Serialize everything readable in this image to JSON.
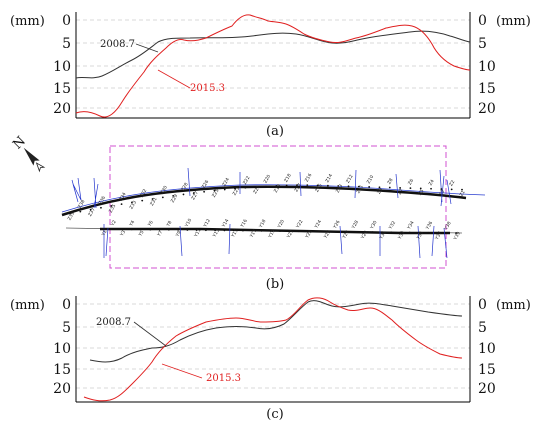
{
  "panels": [
    {
      "caption": "(a)",
      "unit_left": "(mm)",
      "unit_right": "(mm)",
      "ticks": [
        "0",
        "5",
        "10",
        "15",
        "20"
      ],
      "label_black": "2008.7",
      "label_red": "2015.3"
    },
    {
      "caption": "(c)",
      "unit_left": "(mm)",
      "unit_right": "(mm)",
      "ticks": [
        "0",
        "5",
        "10",
        "15",
        "20"
      ],
      "label_black": "2008.7",
      "label_red": "2015.3"
    }
  ],
  "map": {
    "caption": "(b)",
    "north_label": "N",
    "upper_points": [
      "Z39",
      "Z38",
      "Z37",
      "Z36",
      "Z35",
      "Z34",
      "Z33",
      "Z32",
      "Z31",
      "Z30",
      "Z29",
      "Z28",
      "Z27",
      "Z26",
      "Z25",
      "Z24",
      "Z23",
      "Z22",
      "Z21",
      "Z20",
      "Z19",
      "Z18",
      "Z17",
      "Z16",
      "Z15",
      "Z14",
      "Z13",
      "Z12",
      "Z11",
      "Z10",
      "Z9",
      "Z8",
      "Z7",
      "Z6",
      "Z5",
      "Z4",
      "Z3",
      "Z2",
      "Z1"
    ],
    "lower_points": [
      "Y1",
      "Y2",
      "Y3",
      "Y4",
      "Y5",
      "Y6",
      "Y7",
      "Y8",
      "Y9",
      "Y10",
      "Y11",
      "Y12",
      "Y13",
      "Y14",
      "Y15",
      "Y16",
      "Y17",
      "Y18",
      "Y19",
      "Y20",
      "Y21",
      "Y22",
      "Y23",
      "Y24",
      "Y25",
      "Y26",
      "Y27",
      "Y28",
      "Y29",
      "Y30",
      "Y31",
      "Y32",
      "Y33",
      "Y34",
      "Y35",
      "Y36",
      "Y37",
      "Y38",
      "Y39"
    ]
  },
  "colors": {
    "black_line": "#333333",
    "red_line": "#e02020",
    "frame": "#d050d0",
    "measure": "#2233cc"
  }
}
